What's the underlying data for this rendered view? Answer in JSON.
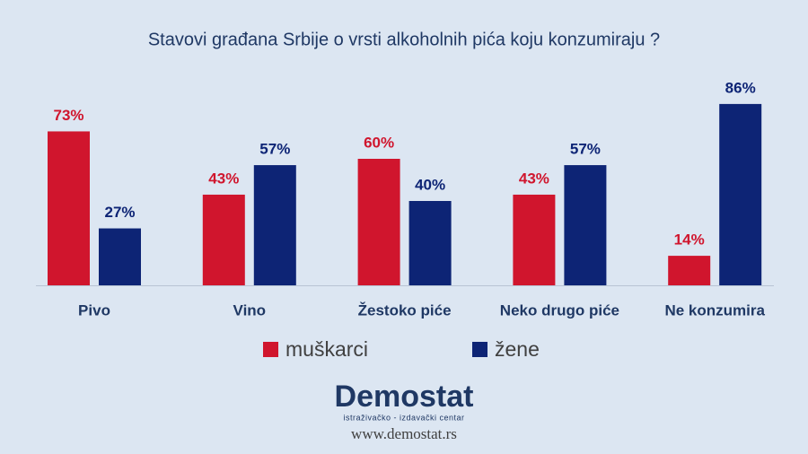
{
  "chart_data": {
    "type": "bar",
    "title": "Stavovi građana Srbije o vrsti alkoholnih pića koju konzumiraju ?",
    "categories": [
      "Pivo",
      "Vino",
      "Žestoko piće",
      "Neko drugo piće",
      "Ne konzumira"
    ],
    "series": [
      {
        "name": "muškarci",
        "color": "#d0152d",
        "values": [
          73,
          43,
          60,
          43,
          14
        ],
        "value_labels": [
          "73%",
          "43%",
          "60%",
          "43%",
          "14%"
        ]
      },
      {
        "name": "žene",
        "color": "#0d2475",
        "values": [
          27,
          57,
          40,
          57,
          86
        ],
        "value_labels": [
          "27%",
          "57%",
          "40%",
          "57%",
          "86%"
        ]
      }
    ],
    "legend": "bottom"
  },
  "footer": {
    "logo": "Demostat",
    "tagline": "istraživačko - izdavački centar",
    "url": "www.demostat.rs"
  }
}
